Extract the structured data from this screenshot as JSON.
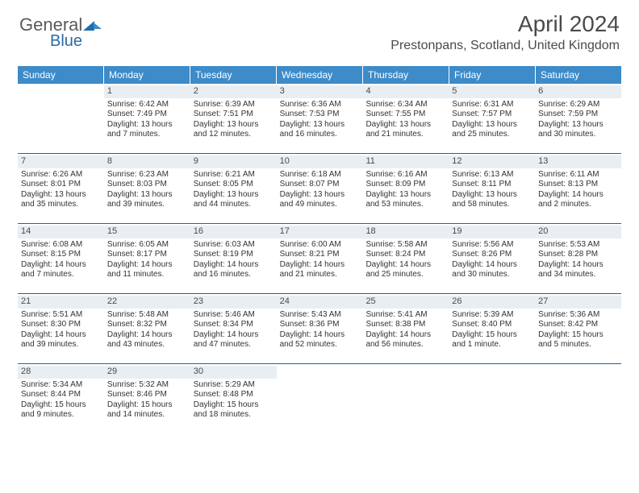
{
  "brand": {
    "part1": "General",
    "part2": "Blue"
  },
  "header": {
    "monthTitle": "April 2024",
    "location": "Prestonpans, Scotland, United Kingdom"
  },
  "colors": {
    "headerBg": "#3d8bc9",
    "headerText": "#ffffff",
    "dayNumBg": "#e9eef2",
    "weekBorder": "#2b5f8f",
    "text": "#333333",
    "logoDark": "#1f6db2",
    "logoLight": "#3d8bc9"
  },
  "dayNames": [
    "Sunday",
    "Monday",
    "Tuesday",
    "Wednesday",
    "Thursday",
    "Friday",
    "Saturday"
  ],
  "weeks": [
    [
      {
        "n": "",
        "sr": "",
        "ss": "",
        "dl": ""
      },
      {
        "n": "1",
        "sr": "Sunrise: 6:42 AM",
        "ss": "Sunset: 7:49 PM",
        "dl": "Daylight: 13 hours and 7 minutes."
      },
      {
        "n": "2",
        "sr": "Sunrise: 6:39 AM",
        "ss": "Sunset: 7:51 PM",
        "dl": "Daylight: 13 hours and 12 minutes."
      },
      {
        "n": "3",
        "sr": "Sunrise: 6:36 AM",
        "ss": "Sunset: 7:53 PM",
        "dl": "Daylight: 13 hours and 16 minutes."
      },
      {
        "n": "4",
        "sr": "Sunrise: 6:34 AM",
        "ss": "Sunset: 7:55 PM",
        "dl": "Daylight: 13 hours and 21 minutes."
      },
      {
        "n": "5",
        "sr": "Sunrise: 6:31 AM",
        "ss": "Sunset: 7:57 PM",
        "dl": "Daylight: 13 hours and 25 minutes."
      },
      {
        "n": "6",
        "sr": "Sunrise: 6:29 AM",
        "ss": "Sunset: 7:59 PM",
        "dl": "Daylight: 13 hours and 30 minutes."
      }
    ],
    [
      {
        "n": "7",
        "sr": "Sunrise: 6:26 AM",
        "ss": "Sunset: 8:01 PM",
        "dl": "Daylight: 13 hours and 35 minutes."
      },
      {
        "n": "8",
        "sr": "Sunrise: 6:23 AM",
        "ss": "Sunset: 8:03 PM",
        "dl": "Daylight: 13 hours and 39 minutes."
      },
      {
        "n": "9",
        "sr": "Sunrise: 6:21 AM",
        "ss": "Sunset: 8:05 PM",
        "dl": "Daylight: 13 hours and 44 minutes."
      },
      {
        "n": "10",
        "sr": "Sunrise: 6:18 AM",
        "ss": "Sunset: 8:07 PM",
        "dl": "Daylight: 13 hours and 49 minutes."
      },
      {
        "n": "11",
        "sr": "Sunrise: 6:16 AM",
        "ss": "Sunset: 8:09 PM",
        "dl": "Daylight: 13 hours and 53 minutes."
      },
      {
        "n": "12",
        "sr": "Sunrise: 6:13 AM",
        "ss": "Sunset: 8:11 PM",
        "dl": "Daylight: 13 hours and 58 minutes."
      },
      {
        "n": "13",
        "sr": "Sunrise: 6:11 AM",
        "ss": "Sunset: 8:13 PM",
        "dl": "Daylight: 14 hours and 2 minutes."
      }
    ],
    [
      {
        "n": "14",
        "sr": "Sunrise: 6:08 AM",
        "ss": "Sunset: 8:15 PM",
        "dl": "Daylight: 14 hours and 7 minutes."
      },
      {
        "n": "15",
        "sr": "Sunrise: 6:05 AM",
        "ss": "Sunset: 8:17 PM",
        "dl": "Daylight: 14 hours and 11 minutes."
      },
      {
        "n": "16",
        "sr": "Sunrise: 6:03 AM",
        "ss": "Sunset: 8:19 PM",
        "dl": "Daylight: 14 hours and 16 minutes."
      },
      {
        "n": "17",
        "sr": "Sunrise: 6:00 AM",
        "ss": "Sunset: 8:21 PM",
        "dl": "Daylight: 14 hours and 21 minutes."
      },
      {
        "n": "18",
        "sr": "Sunrise: 5:58 AM",
        "ss": "Sunset: 8:24 PM",
        "dl": "Daylight: 14 hours and 25 minutes."
      },
      {
        "n": "19",
        "sr": "Sunrise: 5:56 AM",
        "ss": "Sunset: 8:26 PM",
        "dl": "Daylight: 14 hours and 30 minutes."
      },
      {
        "n": "20",
        "sr": "Sunrise: 5:53 AM",
        "ss": "Sunset: 8:28 PM",
        "dl": "Daylight: 14 hours and 34 minutes."
      }
    ],
    [
      {
        "n": "21",
        "sr": "Sunrise: 5:51 AM",
        "ss": "Sunset: 8:30 PM",
        "dl": "Daylight: 14 hours and 39 minutes."
      },
      {
        "n": "22",
        "sr": "Sunrise: 5:48 AM",
        "ss": "Sunset: 8:32 PM",
        "dl": "Daylight: 14 hours and 43 minutes."
      },
      {
        "n": "23",
        "sr": "Sunrise: 5:46 AM",
        "ss": "Sunset: 8:34 PM",
        "dl": "Daylight: 14 hours and 47 minutes."
      },
      {
        "n": "24",
        "sr": "Sunrise: 5:43 AM",
        "ss": "Sunset: 8:36 PM",
        "dl": "Daylight: 14 hours and 52 minutes."
      },
      {
        "n": "25",
        "sr": "Sunrise: 5:41 AM",
        "ss": "Sunset: 8:38 PM",
        "dl": "Daylight: 14 hours and 56 minutes."
      },
      {
        "n": "26",
        "sr": "Sunrise: 5:39 AM",
        "ss": "Sunset: 8:40 PM",
        "dl": "Daylight: 15 hours and 1 minute."
      },
      {
        "n": "27",
        "sr": "Sunrise: 5:36 AM",
        "ss": "Sunset: 8:42 PM",
        "dl": "Daylight: 15 hours and 5 minutes."
      }
    ],
    [
      {
        "n": "28",
        "sr": "Sunrise: 5:34 AM",
        "ss": "Sunset: 8:44 PM",
        "dl": "Daylight: 15 hours and 9 minutes."
      },
      {
        "n": "29",
        "sr": "Sunrise: 5:32 AM",
        "ss": "Sunset: 8:46 PM",
        "dl": "Daylight: 15 hours and 14 minutes."
      },
      {
        "n": "30",
        "sr": "Sunrise: 5:29 AM",
        "ss": "Sunset: 8:48 PM",
        "dl": "Daylight: 15 hours and 18 minutes."
      },
      {
        "n": "",
        "sr": "",
        "ss": "",
        "dl": ""
      },
      {
        "n": "",
        "sr": "",
        "ss": "",
        "dl": ""
      },
      {
        "n": "",
        "sr": "",
        "ss": "",
        "dl": ""
      },
      {
        "n": "",
        "sr": "",
        "ss": "",
        "dl": ""
      }
    ]
  ]
}
